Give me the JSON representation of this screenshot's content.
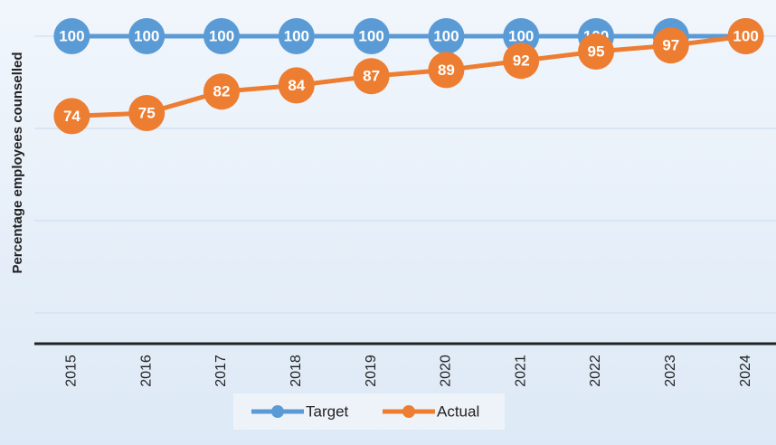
{
  "chart_data": {
    "type": "line",
    "y_label": "Percentage employees counselled",
    "categories": [
      "2015",
      "2016",
      "2017",
      "2018",
      "2019",
      "2020",
      "2021",
      "2022",
      "2023",
      "2024"
    ],
    "series": [
      {
        "name": "Target",
        "color": "#5b9bd5",
        "values": [
          100,
          100,
          100,
          100,
          100,
          100,
          100,
          100,
          100,
          100
        ]
      },
      {
        "name": "Actual",
        "color": "#ed7d31",
        "values": [
          74,
          75,
          82,
          84,
          87,
          89,
          92,
          95,
          97,
          100
        ]
      }
    ],
    "ylim": [
      0,
      100
    ],
    "yticks": [
      10,
      40,
      70,
      100
    ],
    "grid": true,
    "legend": "bottom"
  }
}
